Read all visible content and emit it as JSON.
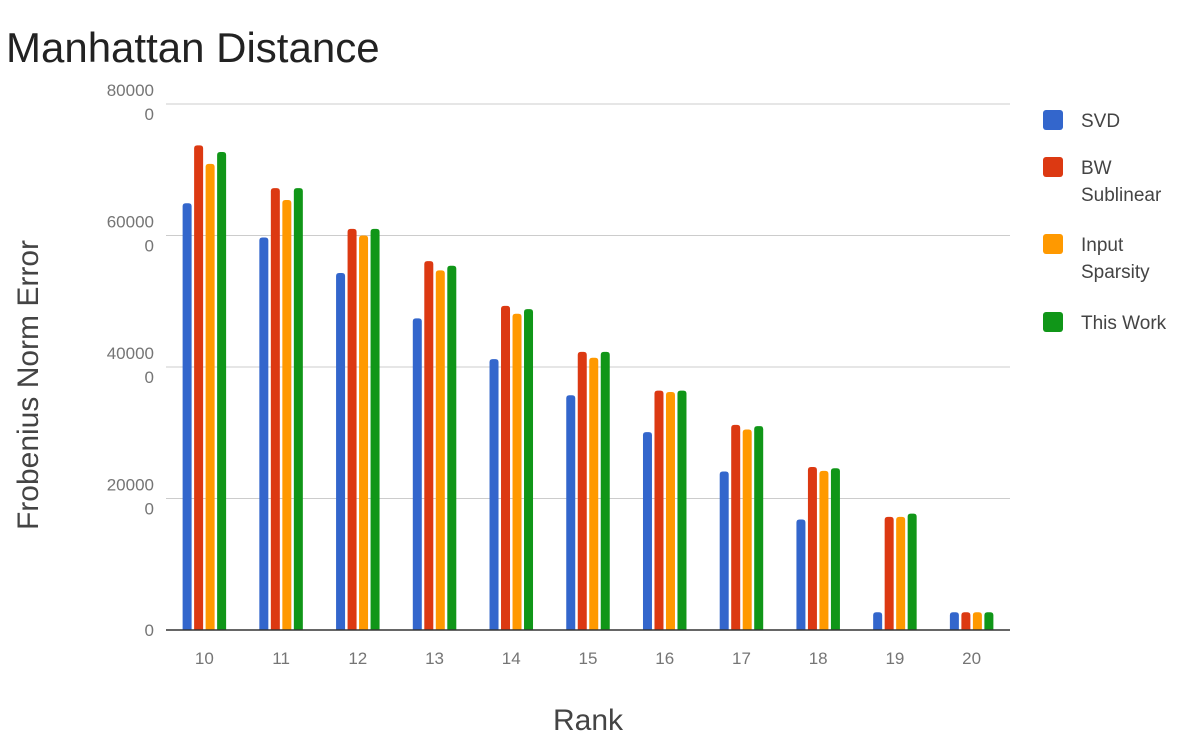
{
  "chart_data": {
    "type": "bar",
    "title": "Manhattan Distance",
    "xlabel": "Rank",
    "ylabel": "Frobenius Norm Error",
    "categories": [
      "10",
      "11",
      "12",
      "13",
      "14",
      "15",
      "16",
      "17",
      "18",
      "19",
      "20"
    ],
    "y_ticks": [
      {
        "value": 0,
        "label": [
          "0"
        ]
      },
      {
        "value": 200000,
        "label": [
          "20000",
          "0"
        ]
      },
      {
        "value": 400000,
        "label": [
          "40000",
          "0"
        ]
      },
      {
        "value": 600000,
        "label": [
          "60000",
          "0"
        ]
      },
      {
        "value": 800000,
        "label": [
          "80000",
          "0"
        ]
      }
    ],
    "ylim": [
      0,
      800000
    ],
    "grid": true,
    "legend_position": "right",
    "series": [
      {
        "name": "SVD",
        "label_lines": [
          "SVD"
        ],
        "color": "#3366cc",
        "values": [
          649000,
          597000,
          543000,
          474000,
          412000,
          357000,
          301000,
          241000,
          168000,
          27000,
          27000
        ]
      },
      {
        "name": "BW Sublinear",
        "label_lines": [
          "BW",
          "Sublinear"
        ],
        "color": "#dc3912",
        "values": [
          737000,
          672000,
          610000,
          561000,
          493000,
          423000,
          364000,
          312000,
          248000,
          172000,
          27000
        ]
      },
      {
        "name": "Input Sparsity",
        "label_lines": [
          "Input",
          "Sparsity"
        ],
        "color": "#ff9900",
        "values": [
          709000,
          654000,
          600000,
          547000,
          481000,
          414000,
          362000,
          305000,
          242000,
          172000,
          27000
        ]
      },
      {
        "name": "This Work",
        "label_lines": [
          "This Work"
        ],
        "color": "#109618",
        "values": [
          727000,
          672000,
          610000,
          554000,
          488000,
          423000,
          364000,
          310000,
          246000,
          177000,
          27000
        ]
      }
    ]
  }
}
